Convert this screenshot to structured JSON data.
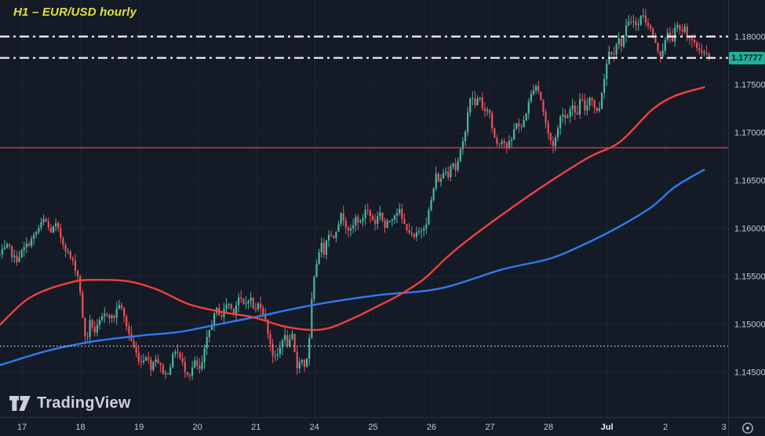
{
  "header": {
    "title": "H1 – EUR/USD hourly"
  },
  "branding": {
    "logo_text": "TradingView",
    "logo_icon": "tradingview-logo-icon"
  },
  "icons": {
    "settings": "gear-icon"
  },
  "colors": {
    "bg": "#141a26",
    "grid": "#1e2532",
    "axis_border": "#2a3142",
    "axis_text": "#c3c8d4",
    "axis_text_bright": "#eef0f4",
    "title": "#e2e13c",
    "logo": "#d6dae3",
    "gear": "#a8aeba",
    "chip_bg": "#20b198",
    "chip_text": "#0d1b28"
  },
  "chart_data": {
    "type": "candlestick",
    "symbol": "EUR/USD",
    "interval": "H1",
    "title": "H1 – EUR/USD hourly",
    "grid": true,
    "bars_per_day": 24,
    "t_range": [
      -0.38,
      11.75
    ],
    "ylim": [
      1.1405,
      1.1838
    ],
    "last_price": 1.17777,
    "last_price_label": "1.17777",
    "candle_up_color": "#4db6a3",
    "candle_down_color": "#e8535a",
    "noise_seed": 7,
    "noise_close": 0.0007,
    "noise_wick": 0.0008,
    "y_ticks": [
      {
        "price": 1.18,
        "label": "1.18000"
      },
      {
        "price": 1.175,
        "label": "1.17500"
      },
      {
        "price": 1.17,
        "label": "1.17000"
      },
      {
        "price": 1.165,
        "label": "1.16500"
      },
      {
        "price": 1.16,
        "label": "1.16000"
      },
      {
        "price": 1.155,
        "label": "1.15500"
      },
      {
        "price": 1.15,
        "label": "1.15000"
      },
      {
        "price": 1.145,
        "label": "1.14500"
      }
    ],
    "x_ticks": [
      {
        "t": 0,
        "label": "17"
      },
      {
        "t": 1,
        "label": "18"
      },
      {
        "t": 2,
        "label": "19"
      },
      {
        "t": 3,
        "label": "20"
      },
      {
        "t": 4,
        "label": "21"
      },
      {
        "t": 5,
        "label": "24"
      },
      {
        "t": 6,
        "label": "25"
      },
      {
        "t": 7,
        "label": "26"
      },
      {
        "t": 8,
        "label": "27"
      },
      {
        "t": 9,
        "label": "28"
      },
      {
        "t": 10,
        "label": "Jul",
        "bold": true
      },
      {
        "t": 11,
        "label": "2"
      },
      {
        "t": 12,
        "label": "3"
      }
    ],
    "levels": [
      {
        "price": 1.18,
        "style": "dashdot",
        "color": "#f5f7fa",
        "width": 2.2
      },
      {
        "price": 1.17777,
        "style": "dashdot",
        "color": "#f5f7fa",
        "width": 2.2,
        "label": "1.17777"
      },
      {
        "price": 1.1684,
        "style": "solid",
        "color": "#ef3b4e",
        "width": 1.3
      },
      {
        "price": 1.1477,
        "style": "dotted",
        "color": "#e8ebf0",
        "width": 1.1
      }
    ],
    "ma_fast": {
      "name": "fast moving average",
      "color": "#f0413e",
      "width": 2.4,
      "points": [
        [
          -0.38,
          1.1499
        ],
        [
          0.05,
          1.1524
        ],
        [
          0.43,
          1.1536
        ],
        [
          0.87,
          1.1544
        ],
        [
          1.1,
          1.1546
        ],
        [
          1.77,
          1.1545
        ],
        [
          2.31,
          1.1536
        ],
        [
          2.84,
          1.1521
        ],
        [
          3.38,
          1.1513
        ],
        [
          3.96,
          1.1507
        ],
        [
          4.45,
          1.1498
        ],
        [
          4.92,
          1.1494
        ],
        [
          5.26,
          1.1496
        ],
        [
          5.66,
          1.1506
        ],
        [
          6.06,
          1.1518
        ],
        [
          6.44,
          1.153
        ],
        [
          6.87,
          1.1547
        ],
        [
          7.27,
          1.157
        ],
        [
          7.67,
          1.159
        ],
        [
          8.34,
          1.162
        ],
        [
          9.01,
          1.1648
        ],
        [
          9.69,
          1.1674
        ],
        [
          10.22,
          1.169
        ],
        [
          10.76,
          1.1723
        ],
        [
          11.16,
          1.1738
        ],
        [
          11.66,
          1.1747
        ]
      ]
    },
    "ma_slow": {
      "name": "slow moving average",
      "color": "#2e7bf0",
      "width": 2.4,
      "points": [
        [
          -0.38,
          1.1457
        ],
        [
          0.43,
          1.1472
        ],
        [
          1.23,
          1.1482
        ],
        [
          2.04,
          1.1488
        ],
        [
          2.71,
          1.1492
        ],
        [
          3.38,
          1.15
        ],
        [
          3.96,
          1.1507
        ],
        [
          4.99,
          1.152
        ],
        [
          6.06,
          1.153
        ],
        [
          7.14,
          1.1537
        ],
        [
          8.21,
          1.1557
        ],
        [
          9.01,
          1.1568
        ],
        [
          9.64,
          1.1584
        ],
        [
          10.22,
          1.1602
        ],
        [
          10.76,
          1.1622
        ],
        [
          11.16,
          1.1643
        ],
        [
          11.66,
          1.1661
        ]
      ]
    },
    "price_path": [
      [
        -0.38,
        1.1572
      ],
      [
        -0.24,
        1.1581
      ],
      [
        -0.11,
        1.1566
      ],
      [
        0.03,
        1.1578
      ],
      [
        0.19,
        1.159
      ],
      [
        0.3,
        1.1601
      ],
      [
        0.39,
        1.161
      ],
      [
        0.48,
        1.1596
      ],
      [
        0.58,
        1.1603
      ],
      [
        0.7,
        1.1585
      ],
      [
        0.81,
        1.1571
      ],
      [
        0.91,
        1.1559
      ],
      [
        0.98,
        1.1545
      ],
      [
        1.05,
        1.1495
      ],
      [
        1.1,
        1.1482
      ],
      [
        1.17,
        1.1504
      ],
      [
        1.25,
        1.1491
      ],
      [
        1.34,
        1.1503
      ],
      [
        1.45,
        1.1512
      ],
      [
        1.56,
        1.1505
      ],
      [
        1.66,
        1.1522
      ],
      [
        1.74,
        1.1508
      ],
      [
        1.84,
        1.1488
      ],
      [
        1.93,
        1.1472
      ],
      [
        2.03,
        1.146
      ],
      [
        2.12,
        1.1468
      ],
      [
        2.2,
        1.1455
      ],
      [
        2.29,
        1.1466
      ],
      [
        2.39,
        1.1452
      ],
      [
        2.47,
        1.1446
      ],
      [
        2.55,
        1.146
      ],
      [
        2.63,
        1.1475
      ],
      [
        2.71,
        1.1463
      ],
      [
        2.79,
        1.1452
      ],
      [
        2.87,
        1.1448
      ],
      [
        2.95,
        1.146
      ],
      [
        3.05,
        1.145
      ],
      [
        3.14,
        1.1478
      ],
      [
        3.23,
        1.15
      ],
      [
        3.33,
        1.1515
      ],
      [
        3.42,
        1.1508
      ],
      [
        3.51,
        1.1524
      ],
      [
        3.61,
        1.1512
      ],
      [
        3.7,
        1.1528
      ],
      [
        3.8,
        1.1518
      ],
      [
        3.89,
        1.153
      ],
      [
        3.98,
        1.1512
      ],
      [
        4.06,
        1.1524
      ],
      [
        4.14,
        1.1508
      ],
      [
        4.23,
        1.1485
      ],
      [
        4.31,
        1.1462
      ],
      [
        4.39,
        1.147
      ],
      [
        4.47,
        1.149
      ],
      [
        4.55,
        1.1477
      ],
      [
        4.63,
        1.1488
      ],
      [
        4.69,
        1.1452
      ],
      [
        4.76,
        1.1466
      ],
      [
        4.83,
        1.1456
      ],
      [
        4.9,
        1.1472
      ],
      [
        4.96,
        1.153
      ],
      [
        5.03,
        1.1562
      ],
      [
        5.1,
        1.1585
      ],
      [
        5.16,
        1.1575
      ],
      [
        5.23,
        1.1598
      ],
      [
        5.31,
        1.1588
      ],
      [
        5.39,
        1.1604
      ],
      [
        5.47,
        1.1615
      ],
      [
        5.55,
        1.1602
      ],
      [
        5.63,
        1.1596
      ],
      [
        5.71,
        1.1612
      ],
      [
        5.79,
        1.1604
      ],
      [
        5.88,
        1.1622
      ],
      [
        5.96,
        1.1612
      ],
      [
        6.04,
        1.1606
      ],
      [
        6.12,
        1.1618
      ],
      [
        6.2,
        1.16
      ],
      [
        6.28,
        1.1608
      ],
      [
        6.36,
        1.1615
      ],
      [
        6.44,
        1.162
      ],
      [
        6.52,
        1.1604
      ],
      [
        6.6,
        1.16
      ],
      [
        6.68,
        1.1588
      ],
      [
        6.76,
        1.1594
      ],
      [
        6.84,
        1.16
      ],
      [
        6.92,
        1.1608
      ],
      [
        7.0,
        1.163
      ],
      [
        7.08,
        1.1655
      ],
      [
        7.15,
        1.1648
      ],
      [
        7.22,
        1.1662
      ],
      [
        7.28,
        1.1655
      ],
      [
        7.35,
        1.1672
      ],
      [
        7.42,
        1.166
      ],
      [
        7.48,
        1.1676
      ],
      [
        7.55,
        1.1692
      ],
      [
        7.62,
        1.1722
      ],
      [
        7.69,
        1.174
      ],
      [
        7.75,
        1.1726
      ],
      [
        7.82,
        1.1742
      ],
      [
        7.89,
        1.1716
      ],
      [
        7.97,
        1.1728
      ],
      [
        8.05,
        1.17
      ],
      [
        8.13,
        1.1688
      ],
      [
        8.21,
        1.1694
      ],
      [
        8.29,
        1.1684
      ],
      [
        8.37,
        1.1692
      ],
      [
        8.45,
        1.1712
      ],
      [
        8.53,
        1.1702
      ],
      [
        8.61,
        1.172
      ],
      [
        8.69,
        1.1736
      ],
      [
        8.77,
        1.1752
      ],
      [
        8.85,
        1.174
      ],
      [
        8.93,
        1.1716
      ],
      [
        9.01,
        1.1694
      ],
      [
        9.08,
        1.1687
      ],
      [
        9.15,
        1.17
      ],
      [
        9.23,
        1.1724
      ],
      [
        9.31,
        1.1712
      ],
      [
        9.39,
        1.1732
      ],
      [
        9.47,
        1.1714
      ],
      [
        9.55,
        1.1736
      ],
      [
        9.63,
        1.1722
      ],
      [
        9.71,
        1.174
      ],
      [
        9.78,
        1.1728
      ],
      [
        9.85,
        1.1718
      ],
      [
        9.91,
        1.1742
      ],
      [
        9.98,
        1.1768
      ],
      [
        10.05,
        1.1788
      ],
      [
        10.11,
        1.1782
      ],
      [
        10.18,
        1.1798
      ],
      [
        10.25,
        1.1792
      ],
      [
        10.32,
        1.1808
      ],
      [
        10.38,
        1.1814
      ],
      [
        10.45,
        1.182
      ],
      [
        10.52,
        1.1806
      ],
      [
        10.58,
        1.1824
      ],
      [
        10.65,
        1.1818
      ],
      [
        10.72,
        1.1812
      ],
      [
        10.79,
        1.1798
      ],
      [
        10.85,
        1.1788
      ],
      [
        10.92,
        1.1781
      ],
      [
        10.99,
        1.1794
      ],
      [
        11.05,
        1.1804
      ],
      [
        11.12,
        1.1798
      ],
      [
        11.19,
        1.1812
      ],
      [
        11.25,
        1.1804
      ],
      [
        11.32,
        1.181
      ],
      [
        11.39,
        1.1801
      ],
      [
        11.46,
        1.1794
      ],
      [
        11.52,
        1.1789
      ],
      [
        11.59,
        1.1786
      ],
      [
        11.66,
        1.1783
      ],
      [
        11.71,
        1.178
      ],
      [
        11.75,
        1.17777
      ]
    ]
  }
}
